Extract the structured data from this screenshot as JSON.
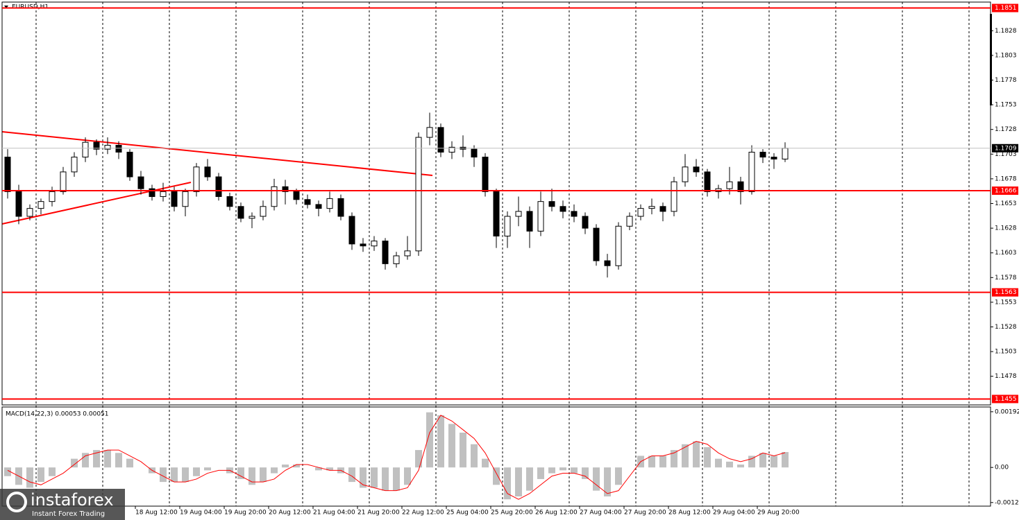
{
  "chart_data": [
    {
      "type": "candlestick",
      "title": "EURUSD,H1",
      "categories": [
        null,
        null,
        null,
        null,
        null,
        null,
        null,
        null,
        null,
        null,
        null,
        null,
        "18 Aug 12:00",
        null,
        null,
        null,
        "19 Aug 04:00",
        null,
        null,
        null,
        "19 Aug 20:00",
        null,
        null,
        null,
        "20 Aug 12:00",
        null,
        null,
        null,
        "21 Aug 04:00",
        null,
        null,
        null,
        "21 Aug 20:00",
        null,
        null,
        null,
        "22 Aug 12:00",
        null,
        null,
        null,
        "25 Aug 04:00",
        null,
        null,
        null,
        "25 Aug 20:00",
        null,
        null,
        null,
        "26 Aug 12:00",
        null,
        null,
        null,
        "27 Aug 04:00",
        null,
        null,
        null,
        "27 Aug 20:00",
        null,
        null,
        null,
        "28 Aug 12:00",
        null,
        null,
        null,
        "29 Aug 04:00",
        null,
        null,
        null,
        "29 Aug 20:00",
        null,
        null
      ],
      "ohlc": [
        [
          1.17,
          1.1708,
          1.1658,
          1.1665
        ],
        [
          1.1665,
          1.1672,
          1.1632,
          1.164
        ],
        [
          1.164,
          1.1652,
          1.1636,
          1.1648
        ],
        [
          1.1648,
          1.1658,
          1.1642,
          1.1655
        ],
        [
          1.1655,
          1.167,
          1.165,
          1.1665
        ],
        [
          1.1665,
          1.169,
          1.1662,
          1.1685
        ],
        [
          1.1685,
          1.1705,
          1.168,
          1.17
        ],
        [
          1.17,
          1.172,
          1.1695,
          1.1715
        ],
        [
          1.1715,
          1.1718,
          1.1702,
          1.1708
        ],
        [
          1.1708,
          1.172,
          1.1703,
          1.1712
        ],
        [
          1.1712,
          1.1716,
          1.1698,
          1.1705
        ],
        [
          1.1705,
          1.1708,
          1.1676,
          1.168
        ],
        [
          1.168,
          1.1686,
          1.1662,
          1.1668
        ],
        [
          1.1668,
          1.1672,
          1.1656,
          1.166
        ],
        [
          1.166,
          1.1674,
          1.1655,
          1.1665
        ],
        [
          1.1665,
          1.167,
          1.1645,
          1.165
        ],
        [
          1.165,
          1.1668,
          1.164,
          1.1665
        ],
        [
          1.1665,
          1.1694,
          1.166,
          1.169
        ],
        [
          1.169,
          1.1698,
          1.1676,
          1.168
        ],
        [
          1.168,
          1.1684,
          1.1656,
          1.166
        ],
        [
          1.166,
          1.1664,
          1.1646,
          1.165
        ],
        [
          1.165,
          1.1654,
          1.1634,
          1.1638
        ],
        [
          1.1638,
          1.1644,
          1.1628,
          1.164
        ],
        [
          1.164,
          1.1656,
          1.1636,
          1.165
        ],
        [
          1.165,
          1.1678,
          1.1646,
          1.167
        ],
        [
          1.167,
          1.1677,
          1.1652,
          1.1665
        ],
        [
          1.1665,
          1.1668,
          1.1652,
          1.1657
        ],
        [
          1.1657,
          1.1662,
          1.1648,
          1.1652
        ],
        [
          1.1652,
          1.1656,
          1.164,
          1.1648
        ],
        [
          1.1648,
          1.1665,
          1.1644,
          1.1658
        ],
        [
          1.1658,
          1.1662,
          1.1636,
          1.164
        ],
        [
          1.164,
          1.1644,
          1.1606,
          1.1612
        ],
        [
          1.1612,
          1.1618,
          1.1604,
          1.161
        ],
        [
          1.161,
          1.162,
          1.1605,
          1.1615
        ],
        [
          1.1615,
          1.1618,
          1.1586,
          1.1592
        ],
        [
          1.1592,
          1.1604,
          1.1588,
          1.16
        ],
        [
          1.16,
          1.162,
          1.1596,
          1.1605
        ],
        [
          1.1605,
          1.1725,
          1.16,
          1.172
        ],
        [
          1.172,
          1.1745,
          1.1712,
          1.173
        ],
        [
          1.173,
          1.1734,
          1.17,
          1.1705
        ],
        [
          1.1705,
          1.1716,
          1.1698,
          1.171
        ],
        [
          1.171,
          1.1722,
          1.17,
          1.1708
        ],
        [
          1.1708,
          1.1712,
          1.169,
          1.17
        ],
        [
          1.17,
          1.1704,
          1.166,
          1.1665
        ],
        [
          1.1665,
          1.1668,
          1.1608,
          1.162
        ],
        [
          1.162,
          1.1645,
          1.1608,
          1.164
        ],
        [
          1.164,
          1.166,
          1.163,
          1.1645
        ],
        [
          1.1645,
          1.165,
          1.1608,
          1.1625
        ],
        [
          1.1625,
          1.1665,
          1.162,
          1.1655
        ],
        [
          1.1655,
          1.1668,
          1.1645,
          1.165
        ],
        [
          1.165,
          1.1656,
          1.1638,
          1.1645
        ],
        [
          1.1645,
          1.1652,
          1.1634,
          1.164
        ],
        [
          1.164,
          1.1644,
          1.1622,
          1.1628
        ],
        [
          1.1628,
          1.1632,
          1.159,
          1.1595
        ],
        [
          1.1595,
          1.1602,
          1.1578,
          1.159
        ],
        [
          1.159,
          1.1634,
          1.1586,
          1.163
        ],
        [
          1.163,
          1.1644,
          1.1626,
          1.164
        ],
        [
          1.164,
          1.1652,
          1.1636,
          1.1648
        ],
        [
          1.1648,
          1.1658,
          1.1642,
          1.165
        ],
        [
          1.165,
          1.1654,
          1.1635,
          1.1645
        ],
        [
          1.1645,
          1.168,
          1.164,
          1.1675
        ],
        [
          1.1675,
          1.1703,
          1.167,
          1.169
        ],
        [
          1.169,
          1.1698,
          1.168,
          1.1685
        ],
        [
          1.1685,
          1.1688,
          1.166,
          1.1665
        ],
        [
          1.1665,
          1.1672,
          1.1658,
          1.1668
        ],
        [
          1.1668,
          1.169,
          1.1662,
          1.1675
        ],
        [
          1.1675,
          1.168,
          1.1652,
          1.1665
        ],
        [
          1.1665,
          1.1712,
          1.1662,
          1.1705
        ],
        [
          1.1705,
          1.1708,
          1.1694,
          1.17
        ],
        [
          1.17,
          1.1704,
          1.1688,
          1.1698
        ],
        [
          1.1698,
          1.1715,
          1.1695,
          1.1709
        ]
      ],
      "ylim": [
        1.1449,
        1.1857
      ],
      "yticks": [
        1.1828,
        1.1803,
        1.1778,
        1.1753,
        1.1728,
        1.1703,
        1.1678,
        1.1653,
        1.1628,
        1.1603,
        1.1578,
        1.1553,
        1.1528,
        1.1503,
        1.1478
      ],
      "levels": {
        "values": [
          1.1851,
          1.1666,
          1.1563,
          1.1455
        ],
        "color": "#ff0000"
      },
      "last_price": 1.1709
    },
    {
      "type": "macd",
      "label": "MACD(14,22,3) 0.00053 0.00051",
      "color": "#c0c0c0",
      "values": [
        -0.0003,
        -0.0006,
        -0.0007,
        -0.0005,
        -0.0003,
        0,
        0.0003,
        0.0005,
        0.0006,
        0.0006,
        0.0005,
        0.0003,
        0,
        -0.0002,
        -0.0005,
        -0.0005,
        -0.0005,
        -0.0003,
        -0.0001,
        0,
        -0.0002,
        -0.0004,
        -0.0006,
        -0.0005,
        -0.0002,
        0.0001,
        0.0001,
        0,
        -0.0001,
        -0.0001,
        -0.0002,
        -0.0005,
        -0.0007,
        -0.0007,
        -0.0008,
        -0.0008,
        -0.0006,
        0.0006,
        0.0019,
        0.0018,
        0.0015,
        0.0012,
        0.0008,
        0.0003,
        -0.0006,
        -0.0011,
        -0.001,
        -0.0008,
        -0.0004,
        -0.0002,
        -0.0001,
        -0.0002,
        -0.0004,
        -0.0008,
        -0.001,
        -0.0006,
        0,
        0.0004,
        0.0004,
        0.0004,
        0.0006,
        0.0008,
        0.0009,
        0.0007,
        0.0003,
        0.0002,
        0.0001,
        0.0004,
        0.0005,
        0.0004,
        0.00053
      ],
      "signal_color": "#ff0000",
      "signal_values": [
        -0.0001,
        -0.0003,
        -0.0005,
        -0.0006,
        -0.0004,
        -0.0002,
        0.0001,
        0.0004,
        0.0005,
        0.0006,
        0.0006,
        0.0004,
        0.0002,
        -0.0001,
        -0.0003,
        -0.0005,
        -0.0005,
        -0.0004,
        -0.0002,
        -0.0001,
        -0.0001,
        -0.0003,
        -0.0005,
        -0.0005,
        -0.0004,
        -0.0001,
        0.0001,
        0.0001,
        0,
        -0.0001,
        -0.0001,
        -0.0003,
        -0.0006,
        -0.0007,
        -0.0008,
        -0.0008,
        -0.0007,
        -0.0001,
        0.0012,
        0.0018,
        0.0016,
        0.0013,
        0.001,
        0.0005,
        -0.0002,
        -0.0009,
        -0.0011,
        -0.0009,
        -0.0006,
        -0.0003,
        -0.0002,
        -0.0002,
        -0.0003,
        -0.0006,
        -0.0009,
        -0.0008,
        -0.0003,
        0.0002,
        0.0004,
        0.0004,
        0.0005,
        0.0007,
        0.0009,
        0.0008,
        0.0005,
        0.0003,
        0.0002,
        0.0003,
        0.0005,
        0.0004,
        0.00051
      ],
      "ylim": [
        -0.00131,
        0.00206
      ],
      "yticks": [
        0.00192,
        {
          "value": 0,
          "label": "0.00"
        },
        -0.00121
      ]
    }
  ],
  "watermark": {
    "brand": "instaforex",
    "tagline": "Instant Forex Trading"
  }
}
